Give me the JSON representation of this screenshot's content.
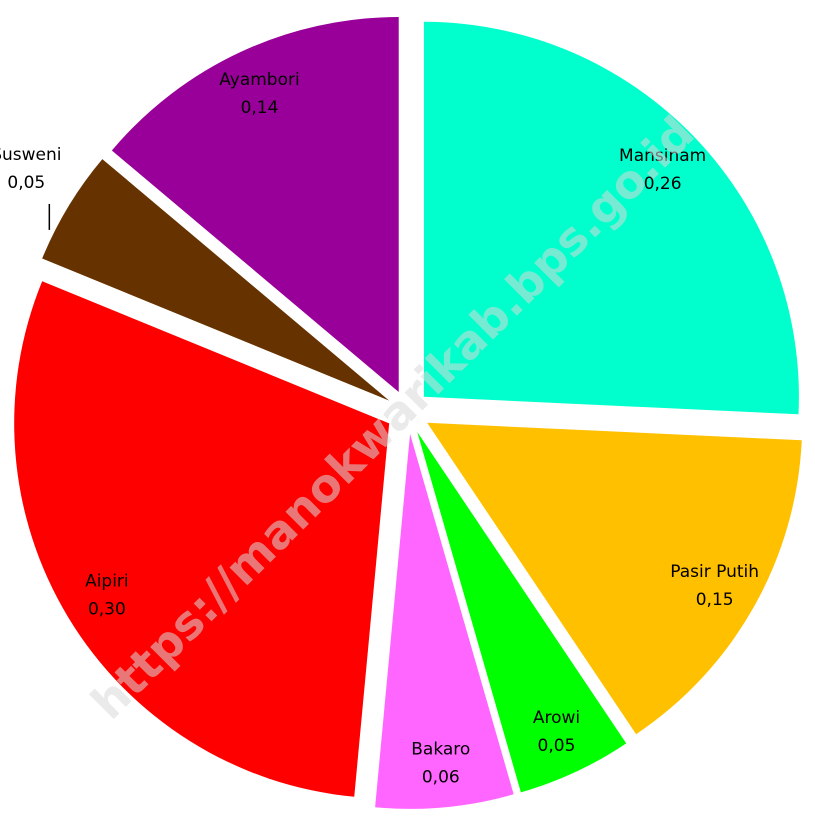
{
  "chart_data": {
    "type": "pie",
    "watermark": "https://manokwarikab.bps.go.id",
    "categories": [
      "Mansinam",
      "Pasir Putih",
      "Arowi",
      "Bakaro",
      "Aipiri",
      "Susweni",
      "Ayambori"
    ],
    "values": [
      0.26,
      0.15,
      0.05,
      0.06,
      0.3,
      0.05,
      0.14
    ],
    "value_labels": [
      "0,26",
      "0,15",
      "0,05",
      "0,06",
      "0,30",
      "0,05",
      "0,14"
    ],
    "colors": [
      "#00ffcc",
      "#ffc000",
      "#00ff00",
      "#ff66ff",
      "#ff0000",
      "#663300",
      "#990099"
    ]
  }
}
